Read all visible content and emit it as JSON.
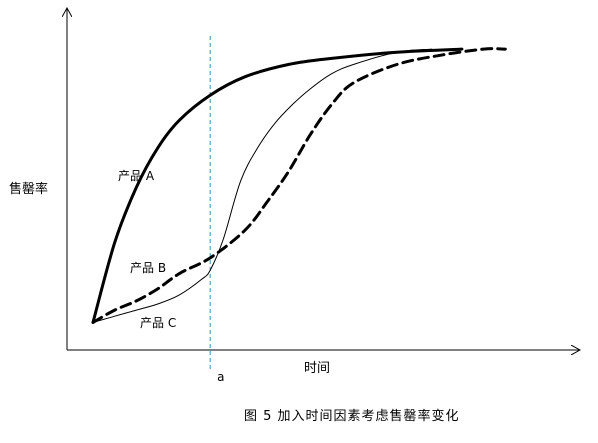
{
  "chart_data": {
    "type": "line",
    "title": "",
    "caption": "图 5 加入时间因素考虑售罄率变化",
    "xlabel": "时间",
    "ylabel": "售罄率",
    "x_marker": {
      "label": "a",
      "x": 0.27
    },
    "xlim": [
      0,
      1
    ],
    "ylim": [
      0,
      1
    ],
    "grid": false,
    "series": [
      {
        "name": "产品 A",
        "style": "solid-thick",
        "x": [
          0.0,
          0.05,
          0.1,
          0.15,
          0.2,
          0.27,
          0.35,
          0.45,
          0.55,
          0.7,
          0.85
        ],
        "y": [
          0.09,
          0.35,
          0.53,
          0.66,
          0.75,
          0.83,
          0.89,
          0.93,
          0.95,
          0.97,
          0.98
        ]
      },
      {
        "name": "产品 B",
        "style": "dashed-thick",
        "x": [
          0.0,
          0.05,
          0.1,
          0.15,
          0.2,
          0.27,
          0.35,
          0.4,
          0.45,
          0.5,
          0.55,
          0.6,
          0.7,
          0.8,
          0.9,
          0.95
        ],
        "y": [
          0.09,
          0.13,
          0.16,
          0.2,
          0.25,
          0.3,
          0.39,
          0.48,
          0.58,
          0.7,
          0.8,
          0.87,
          0.93,
          0.96,
          0.98,
          0.98
        ]
      },
      {
        "name": "产品 C",
        "style": "solid-thin",
        "x": [
          0.0,
          0.05,
          0.1,
          0.15,
          0.2,
          0.25,
          0.27,
          0.3,
          0.34,
          0.38,
          0.42,
          0.46,
          0.5,
          0.55,
          0.6,
          0.7,
          0.78
        ],
        "y": [
          0.09,
          0.11,
          0.13,
          0.15,
          0.18,
          0.23,
          0.26,
          0.36,
          0.55,
          0.66,
          0.74,
          0.8,
          0.85,
          0.9,
          0.93,
          0.97,
          0.98
        ]
      }
    ]
  }
}
